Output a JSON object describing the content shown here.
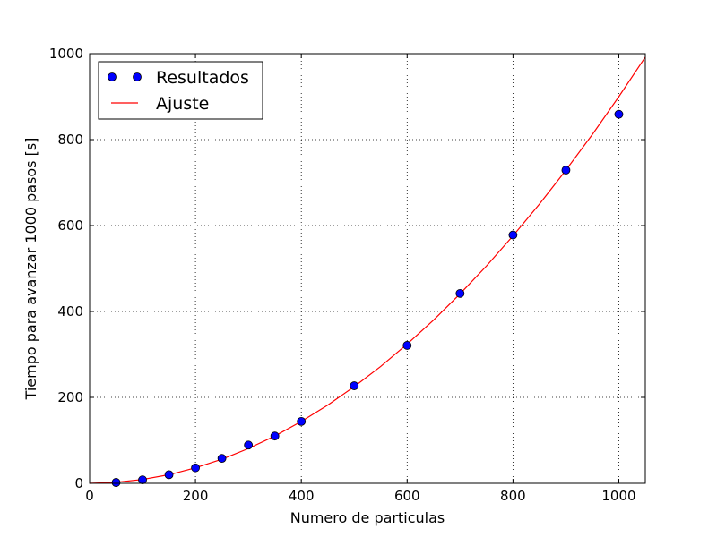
{
  "chart_data": {
    "type": "scatter",
    "xlabel": "Numero de particulas",
    "ylabel": "Tiempo para avanzar 1000 pasos [s]",
    "xlim": [
      0,
      1050
    ],
    "ylim": [
      0,
      1000
    ],
    "xticks": [
      0,
      200,
      400,
      600,
      800,
      1000
    ],
    "yticks": [
      0,
      200,
      400,
      600,
      800,
      1000
    ],
    "grid": true,
    "legend_position": "top-left",
    "series": [
      {
        "name": "Resultados",
        "kind": "markers",
        "color": "#0000ff",
        "x": [
          50,
          100,
          150,
          200,
          250,
          300,
          350,
          400,
          500,
          600,
          700,
          800,
          900,
          1000
        ],
        "y": [
          2,
          8,
          20,
          36,
          58,
          89,
          110,
          144,
          227,
          321,
          442,
          578,
          729,
          859
        ]
      },
      {
        "name": "Ajuste",
        "kind": "line",
        "color": "#ff0000",
        "x": [
          0,
          50,
          100,
          150,
          200,
          250,
          300,
          350,
          400,
          450,
          500,
          550,
          600,
          650,
          700,
          750,
          800,
          850,
          900,
          950,
          1000,
          1050
        ],
        "y": [
          0,
          2.3,
          9,
          20,
          36,
          56,
          81,
          110,
          144,
          182,
          225,
          272,
          324,
          380,
          441,
          506,
          576,
          650,
          729,
          812,
          900,
          992
        ]
      }
    ]
  }
}
